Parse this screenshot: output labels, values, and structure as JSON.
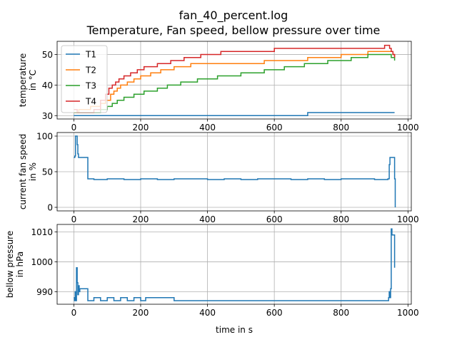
{
  "figure": {
    "title_line1": "fan_40_percent.log",
    "title_line2": "Temperature, Fan speed, bellow pressure over time"
  },
  "chart_data": [
    {
      "type": "line",
      "ylabel_line1": "temperature",
      "ylabel_line2": "in °C",
      "xlabel": "",
      "xlim": [
        -50,
        1010
      ],
      "ylim": [
        28.9,
        54.3
      ],
      "xticks": [
        0,
        200,
        400,
        600,
        800,
        1000
      ],
      "yticks": [
        30,
        40,
        50
      ],
      "grid": true,
      "legend": "top-left",
      "series": [
        {
          "name": "T1",
          "color": "#1f77b4",
          "x": [
            0,
            700,
            700,
            960
          ],
          "y": [
            30,
            30,
            31,
            31
          ]
        },
        {
          "name": "T2",
          "color": "#ff7f0e",
          "x": [
            0,
            15,
            50,
            80,
            95,
            110,
            120,
            130,
            140,
            160,
            180,
            200,
            230,
            260,
            300,
            350,
            430,
            500,
            570,
            620,
            700,
            750,
            800,
            840,
            880,
            900,
            920,
            940,
            950,
            955,
            960
          ],
          "y": [
            31,
            32,
            33,
            34,
            35,
            37,
            38,
            39,
            40,
            41,
            42,
            43,
            44,
            45,
            46,
            47,
            47,
            47,
            48,
            48,
            49,
            49,
            50,
            50,
            51,
            51,
            51,
            51,
            51,
            50,
            49
          ]
        },
        {
          "name": "T3",
          "color": "#2ca02c",
          "x": [
            0,
            60,
            80,
            100,
            115,
            130,
            150,
            180,
            210,
            250,
            280,
            320,
            370,
            430,
            500,
            570,
            630,
            690,
            760,
            830,
            880,
            920,
            940,
            950,
            955,
            960
          ],
          "y": [
            31,
            31,
            32,
            33,
            34,
            35,
            36,
            37,
            38,
            39,
            40,
            41,
            42,
            43,
            44,
            45,
            46,
            47,
            48,
            49,
            50,
            50,
            50,
            49,
            49,
            48
          ]
        },
        {
          "name": "T4",
          "color": "#d62728",
          "x": [
            0,
            10,
            40,
            60,
            80,
            95,
            105,
            115,
            125,
            135,
            150,
            170,
            190,
            210,
            250,
            290,
            330,
            380,
            440,
            520,
            600,
            680,
            760,
            830,
            870,
            900,
            920,
            930,
            940,
            945,
            950,
            955,
            960
          ],
          "y": [
            32,
            31,
            31,
            32,
            35,
            37,
            39,
            40,
            41,
            42,
            43,
            44,
            45,
            46,
            47,
            48,
            49,
            50,
            51,
            51,
            52,
            52,
            52,
            52,
            52,
            52,
            52,
            53,
            53,
            52,
            51,
            50,
            49
          ]
        }
      ]
    },
    {
      "type": "line",
      "ylabel_line1": "current fan speed",
      "ylabel_line2": "in %",
      "xlabel": "",
      "xlim": [
        -50,
        1010
      ],
      "ylim": [
        -5,
        105
      ],
      "xticks": [
        0,
        200,
        400,
        600,
        800,
        1000
      ],
      "yticks": [
        0,
        50,
        100
      ],
      "grid": true,
      "series": [
        {
          "name": "",
          "color": "#1f77b4",
          "x": [
            0,
            3,
            5,
            8,
            10,
            12,
            14,
            16,
            18,
            25,
            35,
            40,
            42,
            60,
            100,
            150,
            200,
            250,
            300,
            350,
            400,
            450,
            500,
            550,
            600,
            650,
            700,
            750,
            800,
            850,
            900,
            940,
            944,
            946,
            950,
            958,
            960,
            962
          ],
          "y": [
            70,
            72,
            100,
            100,
            88,
            75,
            70,
            70,
            70,
            70,
            70,
            70,
            40,
            39,
            40,
            39,
            40,
            39,
            40,
            40,
            39,
            40,
            39,
            40,
            40,
            39,
            40,
            39,
            40,
            40,
            39,
            40,
            60,
            70,
            70,
            70,
            40,
            0
          ]
        }
      ]
    },
    {
      "type": "line",
      "ylabel_line1": "bellow pressure",
      "ylabel_line2": "in hPa",
      "xlabel": "time in s",
      "xlim": [
        -50,
        1010
      ],
      "ylim": [
        985.8,
        1012.5
      ],
      "xticks": [
        0,
        200,
        400,
        600,
        800,
        1000
      ],
      "yticks": [
        990,
        1000,
        1010
      ],
      "grid": true,
      "series": [
        {
          "name": "",
          "color": "#1f77b4",
          "x": [
            0,
            2,
            4,
            6,
            8,
            10,
            12,
            14,
            16,
            18,
            20,
            40,
            42,
            60,
            80,
            100,
            120,
            140,
            160,
            180,
            200,
            215,
            300,
            400,
            500,
            600,
            700,
            800,
            900,
            940,
            942,
            944,
            946,
            948,
            950,
            952,
            954,
            956,
            958,
            960
          ],
          "y": [
            988,
            987,
            990,
            987,
            998,
            993,
            989,
            992,
            990,
            991,
            991,
            991,
            987,
            988,
            987,
            988,
            987,
            988,
            987,
            988,
            987,
            988,
            987,
            987,
            987,
            987,
            987,
            987,
            987,
            987,
            988,
            990,
            988,
            991,
            1011,
            1009,
            1009,
            1009,
            1009,
            998
          ]
        }
      ]
    }
  ]
}
